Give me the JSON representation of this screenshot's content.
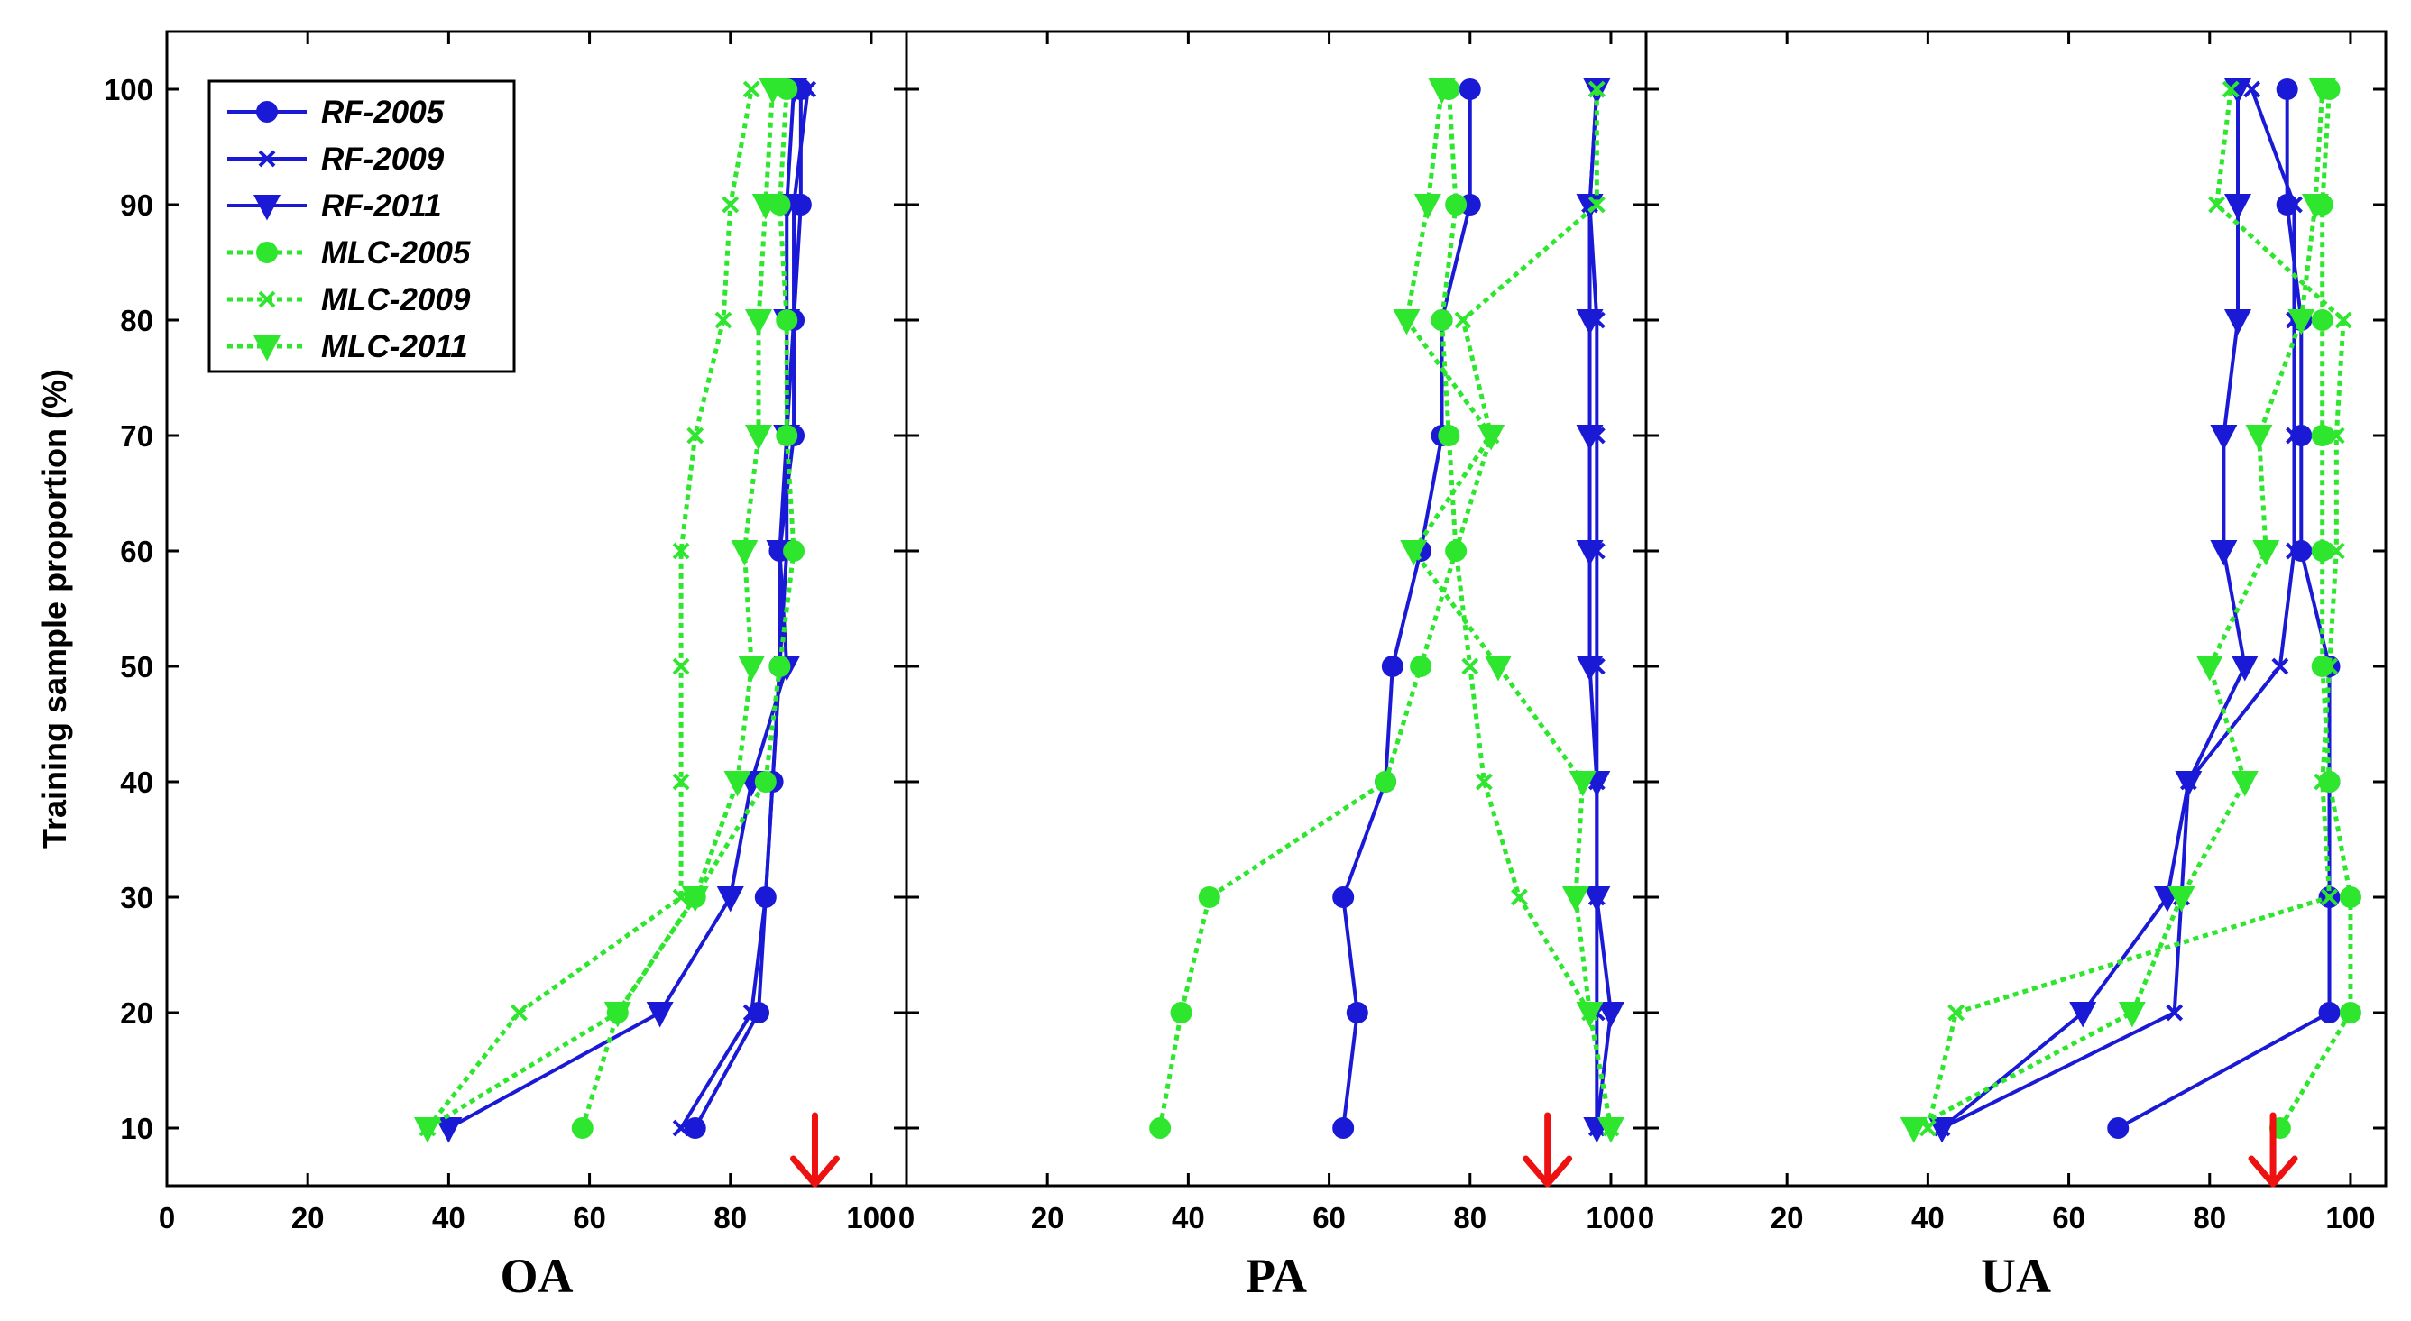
{
  "colors": {
    "rf": "#1a1ad6",
    "mlc": "#2ee62e",
    "arrow": "#ee1111"
  },
  "chart_data": {
    "type": "line",
    "ylabel": "Training sample proportion (%)",
    "y_ticks": [
      "10",
      "20",
      "30",
      "40",
      "50",
      "60",
      "70",
      "80",
      "90",
      "100"
    ],
    "ylim": [
      5,
      105
    ],
    "x_ticks": [
      "0",
      "20",
      "40",
      "60",
      "80",
      "100"
    ],
    "xlim": [
      0,
      105
    ],
    "legend_position": "top-left of first panel",
    "grid": false,
    "legend": [
      {
        "name": "RF-2005",
        "color": "#1a1ad6",
        "marker": "circle",
        "dash": "solid"
      },
      {
        "name": "RF-2009",
        "color": "#1a1ad6",
        "marker": "x",
        "dash": "solid"
      },
      {
        "name": "RF-2011",
        "color": "#1a1ad6",
        "marker": "triangle-down",
        "dash": "solid"
      },
      {
        "name": "MLC-2005",
        "color": "#2ee62e",
        "marker": "circle",
        "dash": "dotted"
      },
      {
        "name": "MLC-2009",
        "color": "#2ee62e",
        "marker": "x",
        "dash": "dotted"
      },
      {
        "name": "MLC-2011",
        "color": "#2ee62e",
        "marker": "triangle-down",
        "dash": "dotted"
      }
    ],
    "y": [
      10,
      20,
      30,
      40,
      50,
      60,
      70,
      80,
      90,
      100
    ],
    "panels": [
      {
        "title": "OA",
        "arrow_x": 92,
        "series": [
          {
            "name": "RF-2005",
            "values": [
              75,
              84,
              85,
              86,
              87,
              87,
              89,
              89,
              90,
              90
            ]
          },
          {
            "name": "RF-2009",
            "values": [
              73,
              83,
              85,
              86,
              87,
              88,
              88,
              89,
              89,
              91
            ]
          },
          {
            "name": "RF-2011",
            "values": [
              40,
              70,
              80,
              83,
              88,
              87,
              88,
              88,
              88,
              89
            ]
          },
          {
            "name": "MLC-2005",
            "values": [
              59,
              64,
              75,
              85,
              87,
              89,
              88,
              88,
              87,
              88
            ]
          },
          {
            "name": "MLC-2009",
            "values": [
              37,
              50,
              73,
              73,
              73,
              73,
              75,
              79,
              80,
              83
            ]
          },
          {
            "name": "MLC-2011",
            "values": [
              37,
              64,
              75,
              81,
              83,
              82,
              84,
              84,
              85,
              86
            ]
          }
        ]
      },
      {
        "title": "PA",
        "arrow_x": 91,
        "series": [
          {
            "name": "RF-2005",
            "values": [
              62,
              64,
              62,
              68,
              69,
              73,
              76,
              76,
              80,
              80
            ]
          },
          {
            "name": "RF-2009",
            "values": [
              98,
              98,
              98,
              98,
              98,
              98,
              98,
              98,
              97,
              98
            ]
          },
          {
            "name": "RF-2011",
            "values": [
              98,
              100,
              98,
              98,
              97,
              97,
              97,
              97,
              97,
              98
            ]
          },
          {
            "name": "MLC-2005",
            "values": [
              36,
              39,
              43,
              68,
              73,
              78,
              77,
              76,
              78,
              77
            ]
          },
          {
            "name": "MLC-2009",
            "values": [
              100,
              97,
              87,
              82,
              80,
              78,
              83,
              79,
              98,
              98
            ]
          },
          {
            "name": "MLC-2011",
            "values": [
              100,
              97,
              95,
              96,
              84,
              72,
              83,
              71,
              74,
              76
            ]
          }
        ]
      },
      {
        "title": "UA",
        "arrow_x": 89,
        "series": [
          {
            "name": "RF-2005",
            "values": [
              67,
              97,
              97,
              97,
              97,
              93,
              93,
              93,
              91,
              91
            ]
          },
          {
            "name": "RF-2009",
            "values": [
              42,
              75,
              76,
              77,
              90,
              92,
              92,
              92,
              92,
              86
            ]
          },
          {
            "name": "RF-2011",
            "values": [
              42,
              62,
              74,
              77,
              85,
              82,
              82,
              84,
              84,
              84
            ]
          },
          {
            "name": "MLC-2005",
            "values": [
              90,
              100,
              100,
              97,
              96,
              96,
              96,
              96,
              96,
              97
            ]
          },
          {
            "name": "MLC-2009",
            "values": [
              40,
              44,
              97,
              96,
              97,
              98,
              98,
              99,
              81,
              83
            ]
          },
          {
            "name": "MLC-2011",
            "values": [
              38,
              69,
              76,
              85,
              80,
              88,
              87,
              93,
              95,
              96
            ]
          }
        ]
      }
    ]
  }
}
